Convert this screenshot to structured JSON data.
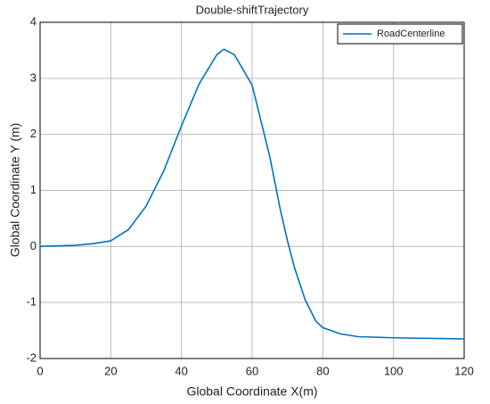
{
  "chart_data": {
    "type": "line",
    "title": "Double-shiftTrajectory",
    "x_label": "Global Coordinate X(m)",
    "y_label": "Global Coordinate Y (m)",
    "x": [
      0,
      5,
      10,
      15,
      20,
      25,
      30,
      35,
      40,
      45,
      50,
      52,
      55,
      60,
      65,
      68,
      70,
      72,
      75,
      78,
      80,
      85,
      90,
      100,
      110,
      120
    ],
    "series": [
      {
        "name": "RoadCenterline",
        "color": "#0072bd",
        "values": [
          0,
          0.01,
          0.02,
          0.05,
          0.1,
          0.3,
          0.72,
          1.35,
          2.15,
          2.9,
          3.42,
          3.52,
          3.42,
          2.88,
          1.6,
          0.65,
          0.1,
          -0.38,
          -0.95,
          -1.33,
          -1.45,
          -1.56,
          -1.61,
          -1.63,
          -1.64,
          -1.65
        ]
      }
    ],
    "xlim": [
      0,
      120
    ],
    "xticks": [
      0,
      20,
      40,
      60,
      80,
      100,
      120
    ],
    "ylim": [
      -2,
      4
    ],
    "yticks": [
      -2,
      -1,
      0,
      1,
      2,
      3,
      4
    ],
    "grid": true,
    "legend": "top-right"
  }
}
